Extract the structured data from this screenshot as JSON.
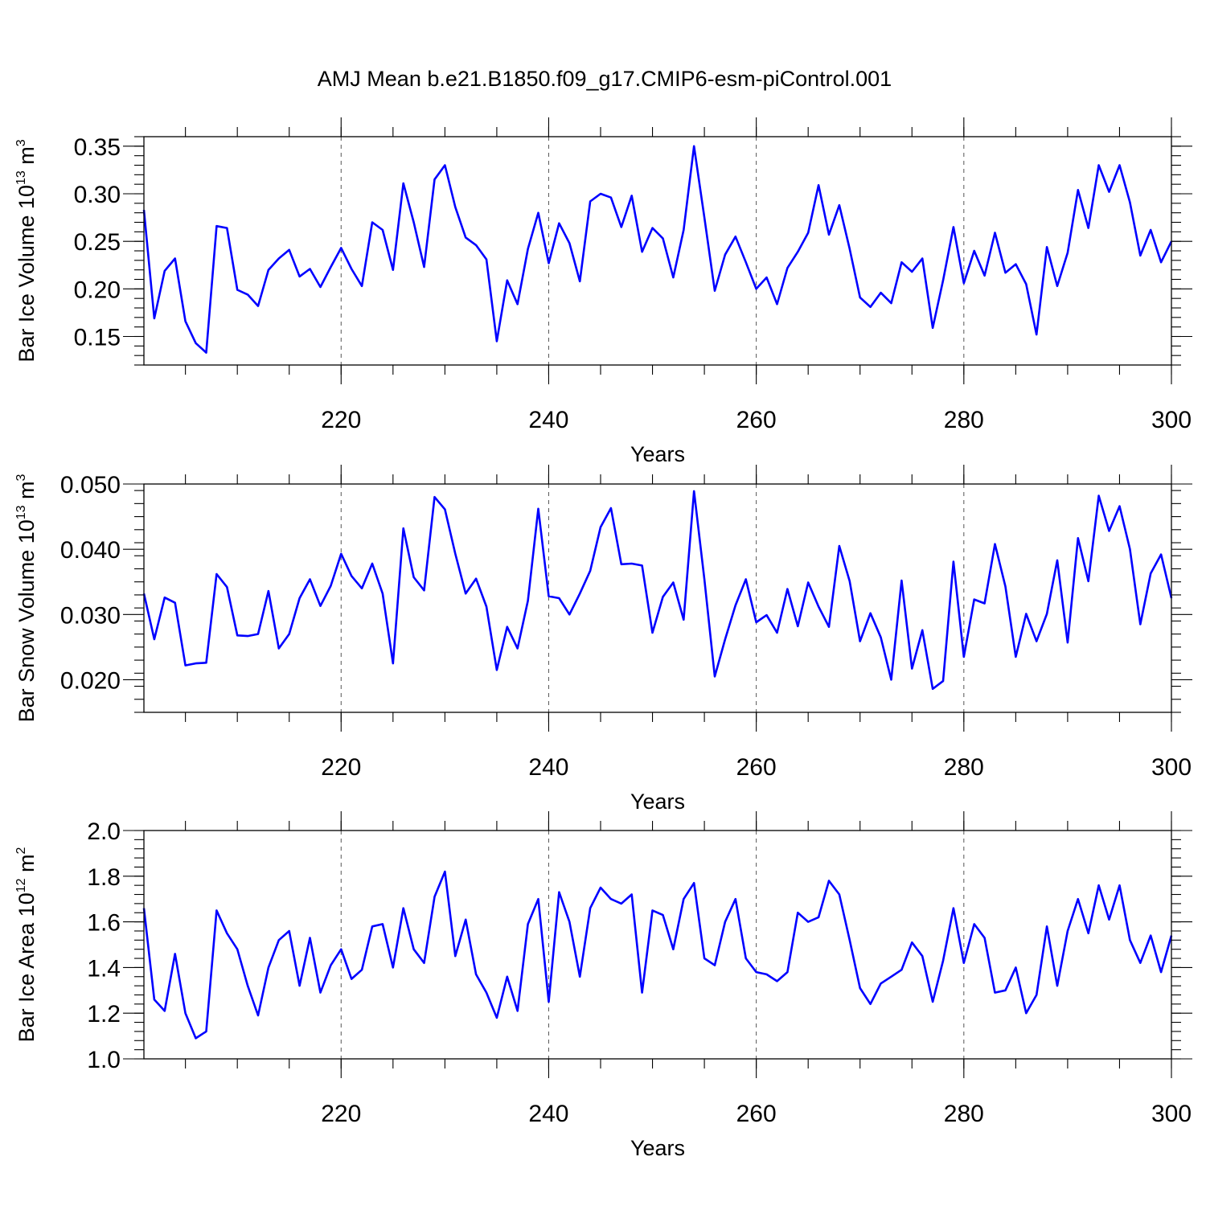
{
  "title": "AMJ Mean b.e21.B1850.f09_g17.CMIP6-esm-piControl.001",
  "colors": {
    "series": "#0000ff",
    "axis": "#000000",
    "grid": "#555555"
  },
  "chart_data": [
    {
      "type": "line",
      "xlabel": "Years",
      "ylabel_main": "Bar Ice Volume 10",
      "ylabel_exp": "13",
      "ylabel_unit": " m",
      "ylabel_unit_exp": "3",
      "xlim": [
        201,
        300
      ],
      "ylim": [
        0.12,
        0.36
      ],
      "xticks": [
        220,
        240,
        260,
        280,
        300
      ],
      "yticks": [
        0.15,
        0.2,
        0.25,
        0.3,
        0.35
      ],
      "ytick_labels": [
        "0.15",
        "0.20",
        "0.25",
        "0.30",
        "0.35"
      ],
      "grid_x": [
        220,
        240,
        260,
        280
      ],
      "x_start": 201,
      "series": [
        {
          "values": [
            0.283,
            0.169,
            0.219,
            0.232,
            0.166,
            0.143,
            0.133,
            0.266,
            0.264,
            0.199,
            0.194,
            0.182,
            0.22,
            0.232,
            0.241,
            0.213,
            0.221,
            0.202,
            0.223,
            0.243,
            0.221,
            0.203,
            0.27,
            0.262,
            0.22,
            0.311,
            0.27,
            0.223,
            0.315,
            0.33,
            0.286,
            0.254,
            0.246,
            0.231,
            0.145,
            0.209,
            0.184,
            0.242,
            0.28,
            0.227,
            0.269,
            0.248,
            0.208,
            0.292,
            0.3,
            0.296,
            0.265,
            0.298,
            0.239,
            0.264,
            0.253,
            0.212,
            0.262,
            0.35,
            0.275,
            0.198,
            0.236,
            0.255,
            0.228,
            0.2,
            0.212,
            0.184,
            0.222,
            0.239,
            0.259,
            0.309,
            0.257,
            0.288,
            0.242,
            0.191,
            0.181,
            0.196,
            0.185,
            0.228,
            0.218,
            0.232,
            0.159,
            0.209,
            0.265,
            0.206,
            0.24,
            0.214,
            0.259,
            0.217,
            0.226,
            0.205,
            0.152,
            0.244,
            0.203,
            0.238,
            0.304,
            0.264,
            0.33,
            0.302,
            0.33,
            0.291,
            0.235,
            0.262,
            0.228,
            0.25
          ]
        }
      ]
    },
    {
      "type": "line",
      "xlabel": "Years",
      "ylabel_main": "Bar Snow Volume 10",
      "ylabel_exp": "13",
      "ylabel_unit": " m",
      "ylabel_unit_exp": "3",
      "xlim": [
        201,
        300
      ],
      "ylim": [
        0.015,
        0.05
      ],
      "xticks": [
        220,
        240,
        260,
        280,
        300
      ],
      "yticks": [
        0.02,
        0.03,
        0.04,
        0.05
      ],
      "ytick_labels": [
        "0.020",
        "0.030",
        "0.040",
        "0.050"
      ],
      "grid_x": [
        220,
        240,
        260,
        280
      ],
      "x_start": 201,
      "series": [
        {
          "values": [
            0.0332,
            0.0262,
            0.0326,
            0.0318,
            0.0222,
            0.0225,
            0.0226,
            0.0362,
            0.0342,
            0.0268,
            0.0267,
            0.027,
            0.0336,
            0.0248,
            0.027,
            0.0325,
            0.0354,
            0.0313,
            0.0344,
            0.0393,
            0.0359,
            0.034,
            0.0378,
            0.0332,
            0.0225,
            0.0432,
            0.0357,
            0.0337,
            0.048,
            0.0461,
            0.0393,
            0.0332,
            0.0355,
            0.0312,
            0.0215,
            0.0281,
            0.0248,
            0.0321,
            0.0462,
            0.0328,
            0.0325,
            0.03,
            0.0332,
            0.0367,
            0.0434,
            0.0463,
            0.0377,
            0.0378,
            0.0375,
            0.0272,
            0.0327,
            0.0349,
            0.0292,
            0.0489,
            0.0354,
            0.0205,
            0.0262,
            0.0314,
            0.0354,
            0.0288,
            0.0299,
            0.0272,
            0.0339,
            0.0282,
            0.0349,
            0.0312,
            0.0281,
            0.0405,
            0.0351,
            0.0259,
            0.0302,
            0.0265,
            0.02,
            0.0352,
            0.0217,
            0.0276,
            0.0186,
            0.0198,
            0.0381,
            0.0235,
            0.0323,
            0.0317,
            0.0408,
            0.0343,
            0.0235,
            0.0301,
            0.0259,
            0.0301,
            0.0383,
            0.0257,
            0.0417,
            0.0351,
            0.0482,
            0.0428,
            0.0466,
            0.04,
            0.0285,
            0.0363,
            0.0392,
            0.0325
          ]
        }
      ]
    },
    {
      "type": "line",
      "xlabel": "Years",
      "ylabel_main": "Bar Ice Area 10",
      "ylabel_exp": "12",
      "ylabel_unit": " m",
      "ylabel_unit_exp": "2",
      "xlim": [
        201,
        300
      ],
      "ylim": [
        1.0,
        2.0
      ],
      "xticks": [
        220,
        240,
        260,
        280,
        300
      ],
      "yticks": [
        1.0,
        1.2,
        1.4,
        1.6,
        1.8,
        2.0
      ],
      "ytick_labels": [
        "1.0",
        "1.2",
        "1.4",
        "1.6",
        "1.8",
        "2.0"
      ],
      "grid_x": [
        220,
        240,
        260,
        280
      ],
      "x_start": 201,
      "series": [
        {
          "values": [
            1.66,
            1.26,
            1.21,
            1.46,
            1.2,
            1.09,
            1.12,
            1.65,
            1.55,
            1.48,
            1.32,
            1.19,
            1.4,
            1.52,
            1.56,
            1.32,
            1.53,
            1.29,
            1.41,
            1.48,
            1.35,
            1.39,
            1.58,
            1.59,
            1.4,
            1.66,
            1.48,
            1.42,
            1.71,
            1.82,
            1.45,
            1.61,
            1.37,
            1.29,
            1.18,
            1.36,
            1.21,
            1.59,
            1.7,
            1.25,
            1.73,
            1.6,
            1.36,
            1.66,
            1.75,
            1.7,
            1.68,
            1.72,
            1.29,
            1.65,
            1.63,
            1.48,
            1.7,
            1.77,
            1.44,
            1.41,
            1.6,
            1.7,
            1.44,
            1.38,
            1.37,
            1.34,
            1.38,
            1.64,
            1.6,
            1.62,
            1.78,
            1.72,
            1.52,
            1.31,
            1.24,
            1.33,
            1.36,
            1.39,
            1.51,
            1.45,
            1.25,
            1.43,
            1.66,
            1.42,
            1.59,
            1.53,
            1.29,
            1.3,
            1.4,
            1.2,
            1.28,
            1.58,
            1.32,
            1.56,
            1.7,
            1.55,
            1.76,
            1.61,
            1.76,
            1.52,
            1.42,
            1.54,
            1.38,
            1.54
          ]
        }
      ]
    }
  ]
}
